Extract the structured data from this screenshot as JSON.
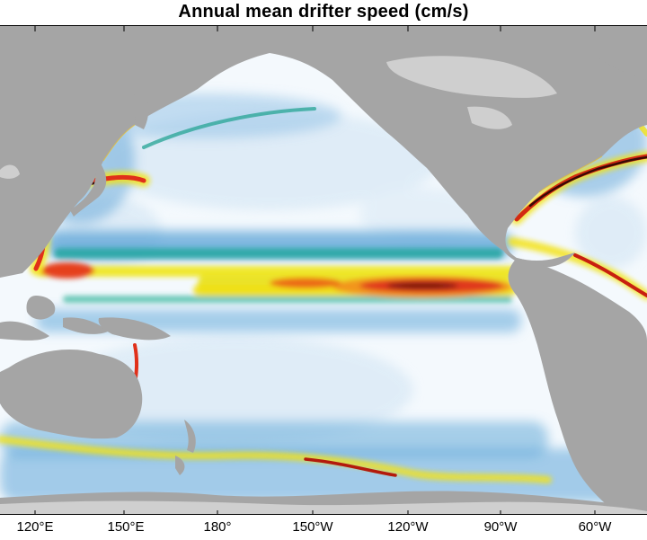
{
  "title": "Annual mean drifter speed (cm/s)",
  "colors": {
    "land": "#a5a5a5",
    "ice": "#cfcfcf",
    "ocean": "#f4f9fd",
    "slow": "#bcd9ef",
    "moderate": "#4a94d0",
    "fast_low": "#2fa89a",
    "fast_mid": "#f3ea14",
    "fast_high": "#e33412",
    "fastest": "#4a0a05"
  },
  "x_axis": {
    "ticks": [
      "120°E",
      "150°E",
      "180°",
      "150°W",
      "120°W",
      "90°W",
      "60°W"
    ]
  }
}
